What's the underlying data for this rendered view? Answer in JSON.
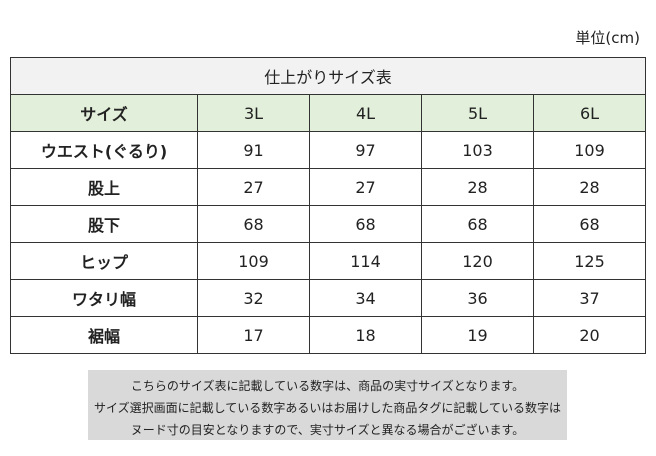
{
  "unit": "単位(cm)",
  "table": {
    "title": "仕上がりサイズ表",
    "header": [
      "サイズ",
      "3L",
      "4L",
      "5L",
      "6L"
    ],
    "rows": [
      [
        "ウエスト(ぐるり)",
        91,
        97,
        103,
        109
      ],
      [
        "股上",
        27,
        27,
        28,
        28
      ],
      [
        "股下",
        68,
        68,
        68,
        68
      ],
      [
        "ヒップ",
        109,
        114,
        120,
        125
      ],
      [
        "ワタリ幅",
        32,
        34,
        36,
        37
      ],
      [
        "裾幅",
        17,
        18,
        19,
        20
      ]
    ]
  },
  "note": [
    "こちらのサイズ表に記載している数字は、商品の実寸サイズとなります。",
    "サイズ選択画面に記載している数字あるいはお届けした商品タグに記載している数字は",
    "ヌード寸の目安となりますので、実寸サイズと異なる場合がございます。"
  ]
}
